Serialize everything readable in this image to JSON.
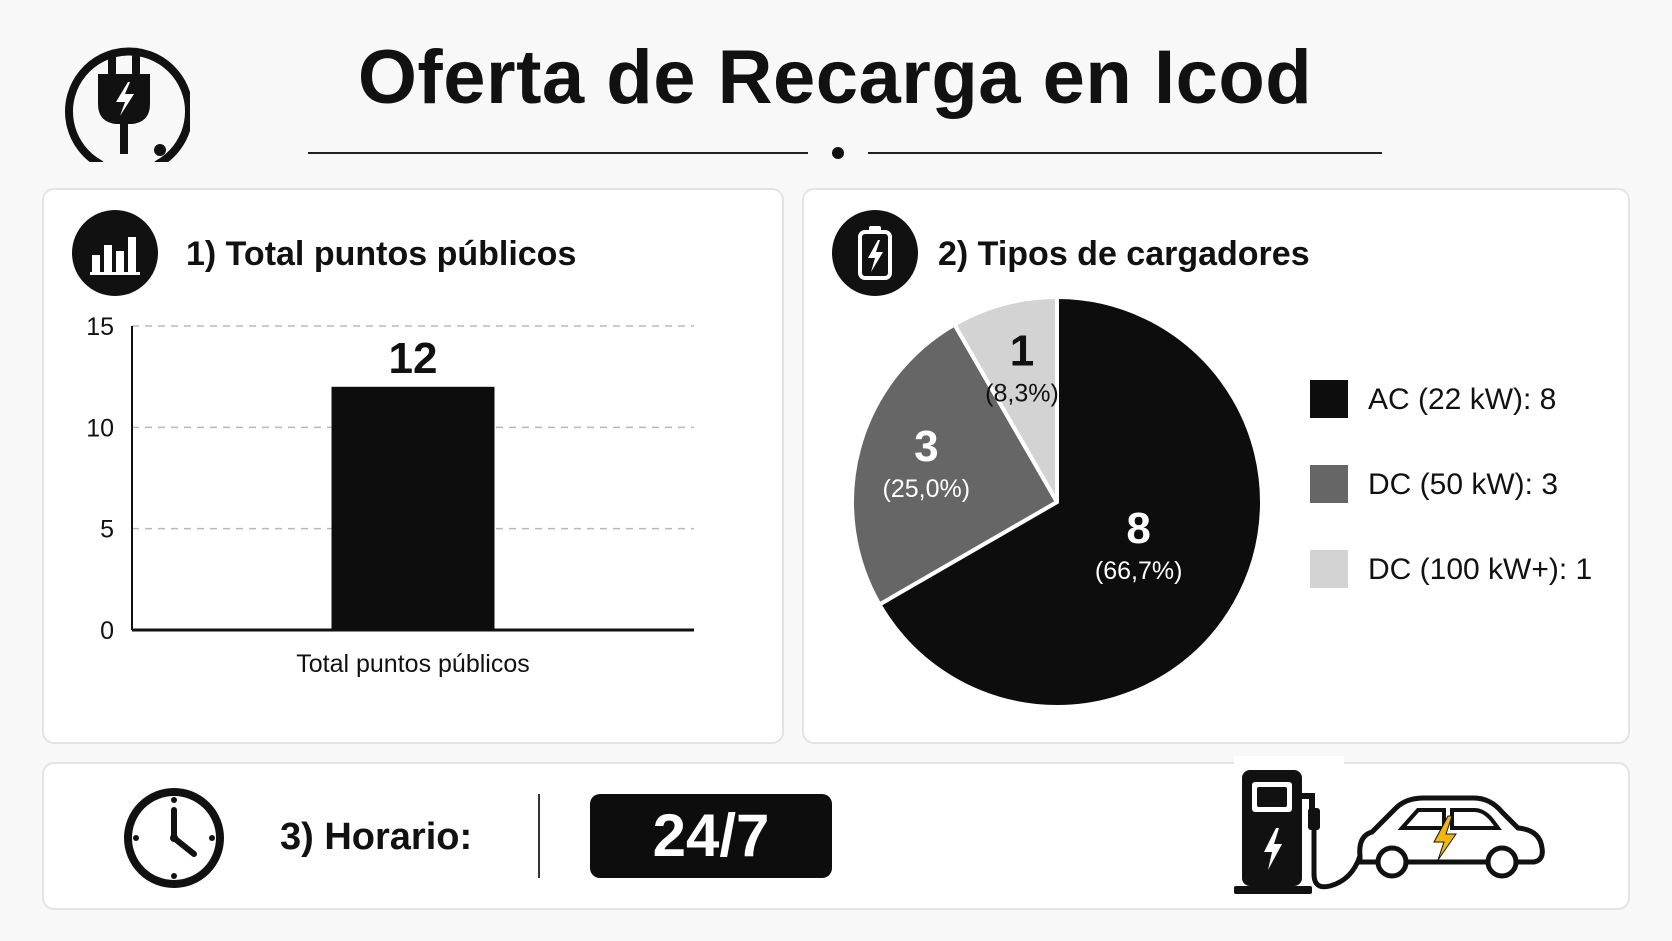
{
  "title": "Oferta de Recarga en Icod",
  "sections": {
    "total": {
      "heading": "1) Total puntos públicos"
    },
    "types": {
      "heading": "2) Tipos de cargadores"
    },
    "hours": {
      "label": "3) Horario:",
      "value": "24/7"
    }
  },
  "icons": [
    "plug-icon",
    "bar-chart-icon",
    "battery-charge-icon",
    "clock-icon",
    "charging-station-icon",
    "electric-car-icon"
  ],
  "colors": {
    "ink": "#0d0d0d",
    "dc50": "#666666",
    "dc100": "#d3d3d3",
    "bolt": "#f2b705"
  },
  "chart_data": [
    {
      "type": "bar",
      "categories": [
        "Total puntos públicos"
      ],
      "values": [
        12
      ],
      "data_labels": [
        "12"
      ],
      "ylim": [
        0,
        15
      ],
      "yticks": [
        0,
        5,
        10,
        15
      ],
      "grid": true,
      "color": "#0d0d0d"
    },
    {
      "type": "pie",
      "labels": [
        "AC (22 kW): 8",
        "DC (50 kW): 3",
        "DC (100 kW+): 1"
      ],
      "values": [
        8,
        3,
        1
      ],
      "value_labels": [
        "8",
        "3",
        "1"
      ],
      "percent_labels": [
        "(66,7%)",
        "(25,0%)",
        "(8,3%)"
      ],
      "colors": [
        "#0d0d0d",
        "#666666",
        "#d3d3d3"
      ],
      "legend": "right"
    }
  ]
}
